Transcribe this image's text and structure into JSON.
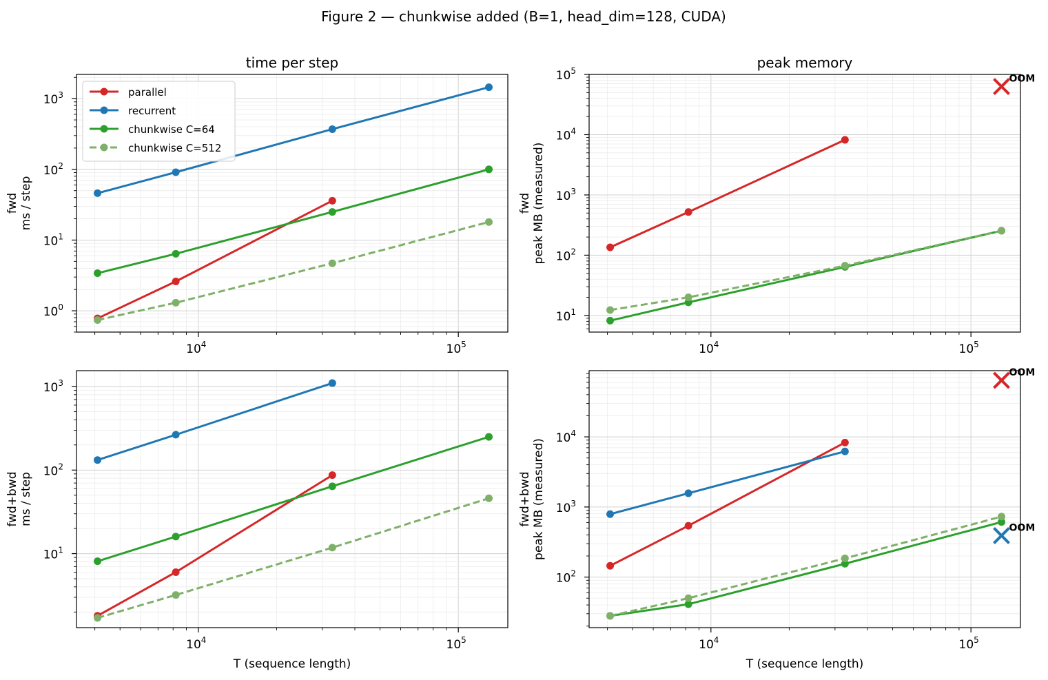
{
  "figure": {
    "suptitle": "Figure 2 — chunkwise added (B=1, head_dim=128, CUDA)"
  },
  "colors": {
    "parallel": "#d62728",
    "recurrent": "#1f77b4",
    "chunkwise C=64": "#2ca02c",
    "chunkwise C=512": "#7fb069"
  },
  "chart_data": [
    {
      "id": "fwd-time",
      "type": "line",
      "title": "time per step",
      "xlabel": "",
      "ylabel": [
        "fwd",
        "ms / step"
      ],
      "xscale": "log",
      "yscale": "log",
      "xlim": [
        3400,
        155000
      ],
      "ylim": [
        0.5,
        2200
      ],
      "xticks": [
        {
          "v": 10000,
          "exp": "4"
        },
        {
          "v": 100000,
          "exp": "5"
        }
      ],
      "yticks": [
        {
          "v": 1,
          "exp": "0"
        },
        {
          "v": 10,
          "exp": "1"
        },
        {
          "v": 100,
          "exp": "2"
        },
        {
          "v": 1000,
          "exp": "3"
        }
      ],
      "grid": true,
      "legend": "top-left",
      "series": [
        {
          "name": "parallel",
          "style": "solid",
          "x": [
            4096,
            8192,
            32768
          ],
          "y": [
            0.78,
            2.6,
            36
          ]
        },
        {
          "name": "recurrent",
          "style": "solid",
          "x": [
            4096,
            8192,
            32768,
            131072
          ],
          "y": [
            46,
            91,
            370,
            1450
          ]
        },
        {
          "name": "chunkwise C=64",
          "style": "solid",
          "x": [
            4096,
            8192,
            32768,
            131072
          ],
          "y": [
            3.4,
            6.4,
            25,
            100
          ]
        },
        {
          "name": "chunkwise C=512",
          "style": "dashed",
          "x": [
            4096,
            8192,
            32768,
            131072
          ],
          "y": [
            0.74,
            1.3,
            4.7,
            18
          ]
        }
      ]
    },
    {
      "id": "fwd-mem",
      "type": "line",
      "title": "peak memory",
      "xlabel": "",
      "ylabel": [
        "fwd",
        "peak MB (measured)"
      ],
      "xscale": "log",
      "yscale": "log",
      "xlim": [
        3400,
        155000
      ],
      "ylim": [
        5.3,
        100000
      ],
      "xticks": [
        {
          "v": 10000,
          "exp": "4"
        },
        {
          "v": 100000,
          "exp": "5"
        }
      ],
      "yticks": [
        {
          "v": 10,
          "exp": "1"
        },
        {
          "v": 100,
          "exp": "2"
        },
        {
          "v": 1000,
          "exp": "3"
        },
        {
          "v": 10000,
          "exp": "4"
        },
        {
          "v": 100000,
          "exp": "5"
        }
      ],
      "grid": true,
      "series": [
        {
          "name": "parallel",
          "style": "solid",
          "x": [
            4096,
            8192,
            32768
          ],
          "y": [
            135,
            520,
            8200
          ]
        },
        {
          "name": "chunkwise C=64",
          "style": "solid",
          "x": [
            4096,
            8192,
            32768,
            131072
          ],
          "y": [
            8.2,
            16.5,
            64,
            255
          ]
        },
        {
          "name": "chunkwise C=512",
          "style": "dashed",
          "x": [
            4096,
            8192,
            32768,
            131072
          ],
          "y": [
            12.3,
            20,
            67,
            255
          ]
        }
      ],
      "markers": [
        {
          "series": "parallel",
          "x": 131072,
          "y": 63000,
          "label": "OOM"
        }
      ]
    },
    {
      "id": "fwdbwd-time",
      "type": "line",
      "title": "",
      "xlabel": "T (sequence length)",
      "ylabel": [
        "fwd+bwd",
        "ms / step"
      ],
      "xscale": "log",
      "yscale": "log",
      "xlim": [
        3400,
        155000
      ],
      "ylim": [
        1.3,
        1550
      ],
      "xticks": [
        {
          "v": 10000,
          "exp": "4"
        },
        {
          "v": 100000,
          "exp": "5"
        }
      ],
      "yticks": [
        {
          "v": 10,
          "exp": "1"
        },
        {
          "v": 100,
          "exp": "2"
        },
        {
          "v": 1000,
          "exp": "3"
        }
      ],
      "grid": true,
      "series": [
        {
          "name": "parallel",
          "style": "solid",
          "x": [
            4096,
            8192,
            32768
          ],
          "y": [
            1.8,
            6,
            87
          ]
        },
        {
          "name": "recurrent",
          "style": "solid",
          "x": [
            4096,
            8192,
            32768
          ],
          "y": [
            132,
            265,
            1100
          ]
        },
        {
          "name": "chunkwise C=64",
          "style": "solid",
          "x": [
            4096,
            8192,
            32768,
            131072
          ],
          "y": [
            8.1,
            16,
            64,
            250
          ]
        },
        {
          "name": "chunkwise C=512",
          "style": "dashed",
          "x": [
            4096,
            8192,
            32768,
            131072
          ],
          "y": [
            1.7,
            3.2,
            11.8,
            46
          ]
        }
      ]
    },
    {
      "id": "fwdbwd-mem",
      "type": "line",
      "title": "",
      "xlabel": "T (sequence length)",
      "ylabel": [
        "fwd+bwd",
        "peak MB (measured)"
      ],
      "xscale": "log",
      "yscale": "log",
      "xlim": [
        3400,
        155000
      ],
      "ylim": [
        19,
        88000
      ],
      "xticks": [
        {
          "v": 10000,
          "exp": "4"
        },
        {
          "v": 100000,
          "exp": "5"
        }
      ],
      "yticks": [
        {
          "v": 100,
          "exp": "2"
        },
        {
          "v": 1000,
          "exp": "3"
        },
        {
          "v": 10000,
          "exp": "4"
        }
      ],
      "grid": true,
      "series": [
        {
          "name": "parallel",
          "style": "solid",
          "x": [
            4096,
            8192,
            32768
          ],
          "y": [
            145,
            540,
            8300
          ]
        },
        {
          "name": "recurrent",
          "style": "solid",
          "x": [
            4096,
            8192,
            32768
          ],
          "y": [
            790,
            1570,
            6200
          ]
        },
        {
          "name": "chunkwise C=64",
          "style": "solid",
          "x": [
            4096,
            8192,
            32768,
            131072
          ],
          "y": [
            28,
            41,
            155,
            610
          ]
        },
        {
          "name": "chunkwise C=512",
          "style": "dashed",
          "x": [
            4096,
            8192,
            32768,
            131072
          ],
          "y": [
            28,
            50,
            185,
            730
          ]
        }
      ],
      "markers": [
        {
          "series": "parallel",
          "x": 131072,
          "y": 64000,
          "label": "OOM"
        },
        {
          "series": "recurrent",
          "x": 131072,
          "y": 390,
          "label": "OOM"
        }
      ]
    }
  ]
}
